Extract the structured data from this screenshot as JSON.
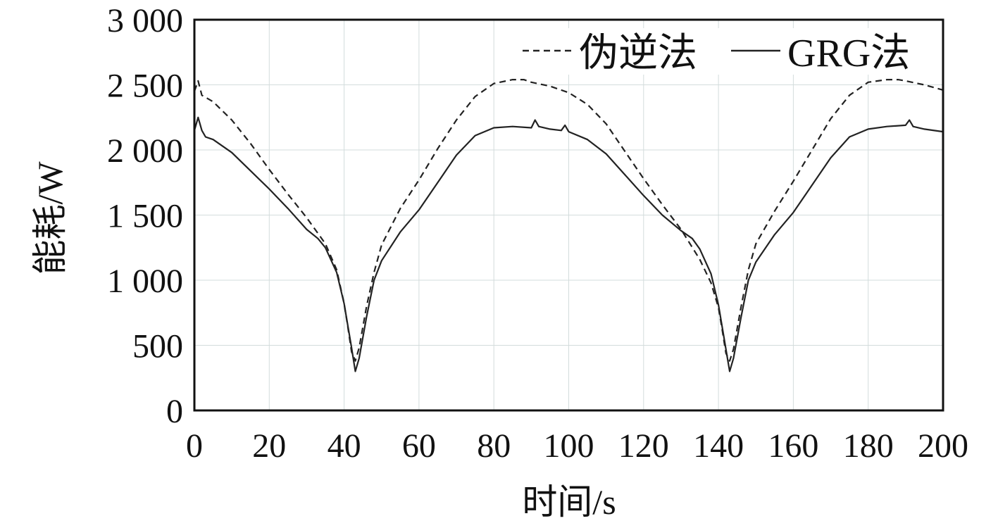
{
  "chart_data": {
    "type": "line",
    "xlabel": "时间/s",
    "ylabel": "能耗/W",
    "xlim": [
      0,
      200
    ],
    "ylim": [
      0,
      3000
    ],
    "xticks": [
      0,
      20,
      40,
      60,
      80,
      100,
      120,
      140,
      160,
      180,
      200
    ],
    "yticks": [
      0,
      500,
      1000,
      1500,
      2000,
      2500,
      3000
    ],
    "xtick_labels": [
      "0",
      "20",
      "40",
      "60",
      "80",
      "100",
      "120",
      "140",
      "160",
      "180",
      "200"
    ],
    "ytick_labels": [
      "0",
      "500",
      "1 000",
      "1 500",
      "2 000",
      "2 500",
      "3 000"
    ],
    "grid": true,
    "legend_position": "top-right",
    "series": [
      {
        "name": "伪逆法",
        "style": "dashed",
        "color": "#222222",
        "x": [
          0,
          1,
          2,
          5,
          10,
          15,
          20,
          25,
          30,
          35,
          38,
          40,
          41,
          42,
          43,
          44,
          46,
          48,
          50,
          55,
          60,
          65,
          70,
          75,
          80,
          85,
          88,
          90,
          95,
          100,
          105,
          110,
          115,
          120,
          125,
          130,
          135,
          138,
          140,
          141,
          142,
          143,
          144,
          146,
          148,
          150,
          155,
          160,
          165,
          170,
          175,
          180,
          185,
          188,
          190,
          195,
          200
        ],
        "y": [
          2450,
          2530,
          2420,
          2370,
          2230,
          2050,
          1850,
          1660,
          1480,
          1280,
          1080,
          820,
          640,
          450,
          380,
          480,
          800,
          1060,
          1270,
          1550,
          1770,
          2010,
          2230,
          2410,
          2510,
          2540,
          2540,
          2520,
          2490,
          2440,
          2350,
          2200,
          1990,
          1780,
          1580,
          1390,
          1160,
          980,
          790,
          620,
          440,
          380,
          470,
          790,
          1080,
          1280,
          1530,
          1760,
          2000,
          2240,
          2420,
          2520,
          2540,
          2540,
          2530,
          2500,
          2460
        ]
      },
      {
        "name": "GRG法",
        "style": "solid",
        "color": "#222222",
        "x": [
          0,
          1,
          2,
          3,
          5,
          10,
          15,
          20,
          25,
          30,
          33,
          35,
          38,
          40,
          41,
          42,
          43,
          44,
          46,
          48,
          50,
          55,
          60,
          65,
          70,
          75,
          80,
          85,
          90,
          91,
          92,
          95,
          98,
          99,
          100,
          105,
          110,
          115,
          120,
          125,
          130,
          133,
          135,
          138,
          140,
          141,
          142,
          143,
          144,
          146,
          148,
          150,
          155,
          160,
          165,
          170,
          175,
          180,
          185,
          190,
          191,
          192,
          195,
          200
        ],
        "y": [
          2150,
          2250,
          2150,
          2100,
          2080,
          1980,
          1840,
          1700,
          1550,
          1390,
          1320,
          1250,
          1060,
          820,
          650,
          480,
          300,
          400,
          720,
          1000,
          1150,
          1370,
          1540,
          1750,
          1960,
          2110,
          2170,
          2180,
          2170,
          2230,
          2180,
          2160,
          2150,
          2190,
          2140,
          2080,
          1970,
          1810,
          1650,
          1500,
          1380,
          1320,
          1240,
          1050,
          810,
          640,
          470,
          300,
          400,
          710,
          1000,
          1140,
          1350,
          1520,
          1730,
          1940,
          2100,
          2160,
          2180,
          2190,
          2230,
          2180,
          2160,
          2140
        ]
      }
    ]
  }
}
